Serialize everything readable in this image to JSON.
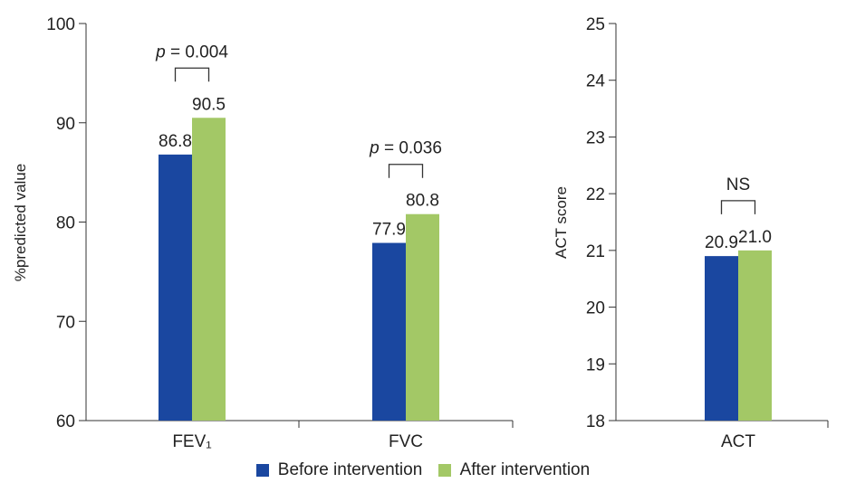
{
  "colors": {
    "before": "#1a47a0",
    "after": "#a3c866"
  },
  "legend": [
    {
      "label": "Before intervention",
      "color": "#1a47a0"
    },
    {
      "label": "After intervention",
      "color": "#a3c866"
    }
  ],
  "chart_data": [
    {
      "type": "bar",
      "ylabel": "%predicted value",
      "ylim": [
        60,
        100
      ],
      "yticks": [
        60,
        70,
        80,
        90,
        100
      ],
      "categories": [
        "FEV₁",
        "FVC"
      ],
      "series": [
        {
          "name": "Before intervention",
          "values": [
            86.8,
            77.9
          ]
        },
        {
          "name": "After intervention",
          "values": [
            90.5,
            80.8
          ]
        }
      ],
      "value_labels": [
        [
          "86.8",
          "90.5"
        ],
        [
          "77.9",
          "80.8"
        ]
      ],
      "annotations": [
        {
          "category": "FEV₁",
          "p_prefix": "p",
          "p_rest": " = 0.004"
        },
        {
          "category": "FVC",
          "p_prefix": "p",
          "p_rest": " = 0.036"
        }
      ]
    },
    {
      "type": "bar",
      "ylabel": "ACT score",
      "ylim": [
        18,
        25
      ],
      "yticks": [
        18,
        19,
        20,
        21,
        22,
        23,
        24,
        25
      ],
      "categories": [
        "ACT"
      ],
      "series": [
        {
          "name": "Before intervention",
          "values": [
            20.9
          ]
        },
        {
          "name": "After intervention",
          "values": [
            21.0
          ]
        }
      ],
      "value_labels": [
        [
          "20.9",
          "21.0"
        ]
      ],
      "annotations": [
        {
          "category": "ACT",
          "text": "NS"
        }
      ]
    }
  ]
}
